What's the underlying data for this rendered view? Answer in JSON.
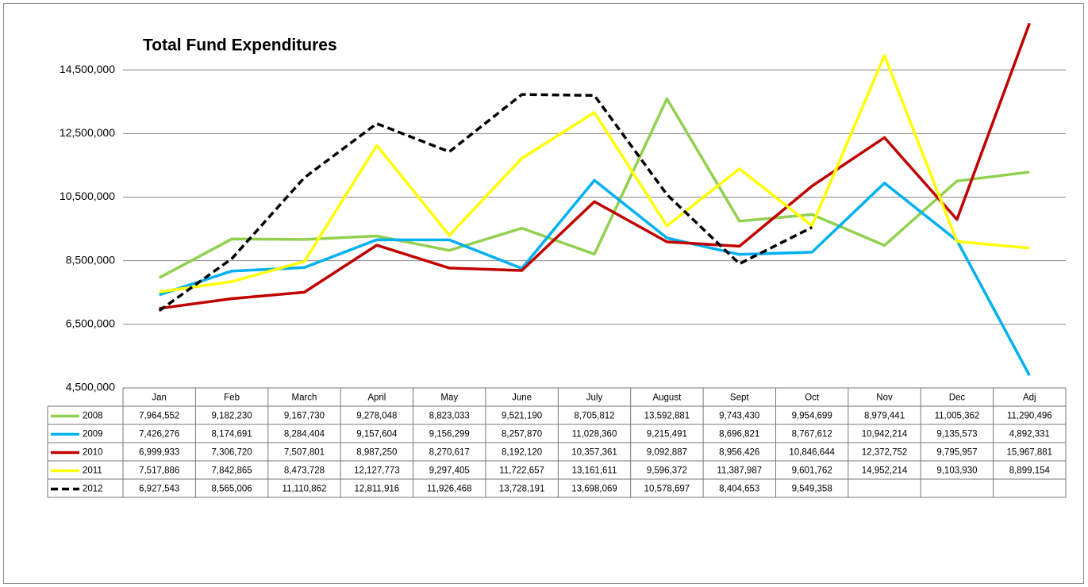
{
  "chart_data": {
    "type": "line",
    "title": "Total Fund Expenditures",
    "categories": [
      "Jan",
      "Feb",
      "March",
      "April",
      "May",
      "June",
      "July",
      "August",
      "Sept",
      "Oct",
      "Nov",
      "Dec",
      "Adj"
    ],
    "ylim": [
      4500000,
      16500000
    ],
    "yticks": [
      {
        "value": 4500000,
        "label": "4,500,000"
      },
      {
        "value": 6500000,
        "label": "6,500,000"
      },
      {
        "value": 8500000,
        "label": "8,500,000"
      },
      {
        "value": 10500000,
        "label": "10,500,000"
      },
      {
        "value": 12500000,
        "label": "12,500,000"
      },
      {
        "value": 14500000,
        "label": "14,500,000"
      }
    ],
    "grid": true,
    "series": [
      {
        "name": "2008",
        "color": "#92d050",
        "values": [
          7964552,
          9182230,
          9167730,
          9278048,
          8823033,
          9521190,
          8705812,
          13592881,
          9743430,
          9954699,
          8979441,
          11005362,
          11290496
        ],
        "value_labels": [
          "7,964,552",
          "9,182,230",
          "9,167,730",
          "9,278,048",
          "8,823,033",
          "9,521,190",
          "8,705,812",
          "13,592,881",
          "9,743,430",
          "9,954,699",
          "8,979,441",
          "11,005,362",
          "11,290,496"
        ]
      },
      {
        "name": "2009",
        "color": "#00b0f0",
        "values": [
          7426276,
          8174691,
          8284404,
          9157604,
          9156299,
          8257870,
          11028360,
          9215491,
          8696821,
          8767612,
          10942214,
          9135573,
          4892331
        ],
        "value_labels": [
          "7,426,276",
          "8,174,691",
          "8,284,404",
          "9,157,604",
          "9,156,299",
          "8,257,870",
          "11,028,360",
          "9,215,491",
          "8,696,821",
          "8,767,612",
          "10,942,214",
          "9,135,573",
          "4,892,331"
        ]
      },
      {
        "name": "2010",
        "color": "#c00000",
        "values": [
          6999933,
          7306720,
          7507801,
          8987250,
          8270617,
          8192120,
          10357361,
          9092887,
          8956426,
          10846644,
          12372752,
          9795957,
          15967881
        ],
        "value_labels": [
          "6,999,933",
          "7,306,720",
          "7,507,801",
          "8,987,250",
          "8,270,617",
          "8,192,120",
          "10,357,361",
          "9,092,887",
          "8,956,426",
          "10,846,644",
          "12,372,752",
          "9,795,957",
          "15,967,881"
        ]
      },
      {
        "name": "2011",
        "color": "#ffff00",
        "values": [
          7517886,
          7842865,
          8473728,
          12127773,
          9297405,
          11722657,
          13161611,
          9596372,
          11387987,
          9601762,
          14952214,
          9103930,
          8899154
        ],
        "value_labels": [
          "7,517,886",
          "7,842,865",
          "8,473,728",
          "12,127,773",
          "9,297,405",
          "11,722,657",
          "13,161,611",
          "9,596,372",
          "11,387,987",
          "9,601,762",
          "14,952,214",
          "9,103,930",
          "8,899,154"
        ]
      },
      {
        "name": "2012",
        "color": "#000000",
        "dashed": true,
        "values": [
          6927543,
          8565006,
          11110862,
          12811916,
          11926468,
          13728191,
          13698069,
          10578697,
          8404653,
          9549358,
          null,
          null,
          null
        ],
        "value_labels": [
          "6,927,543",
          "8,565,006",
          "11,110,862",
          "12,811,916",
          "11,926,468",
          "13,728,191",
          "13,698,069",
          "10,578,697",
          "8,404,653",
          "9,549,358",
          null,
          null,
          null
        ]
      }
    ]
  }
}
